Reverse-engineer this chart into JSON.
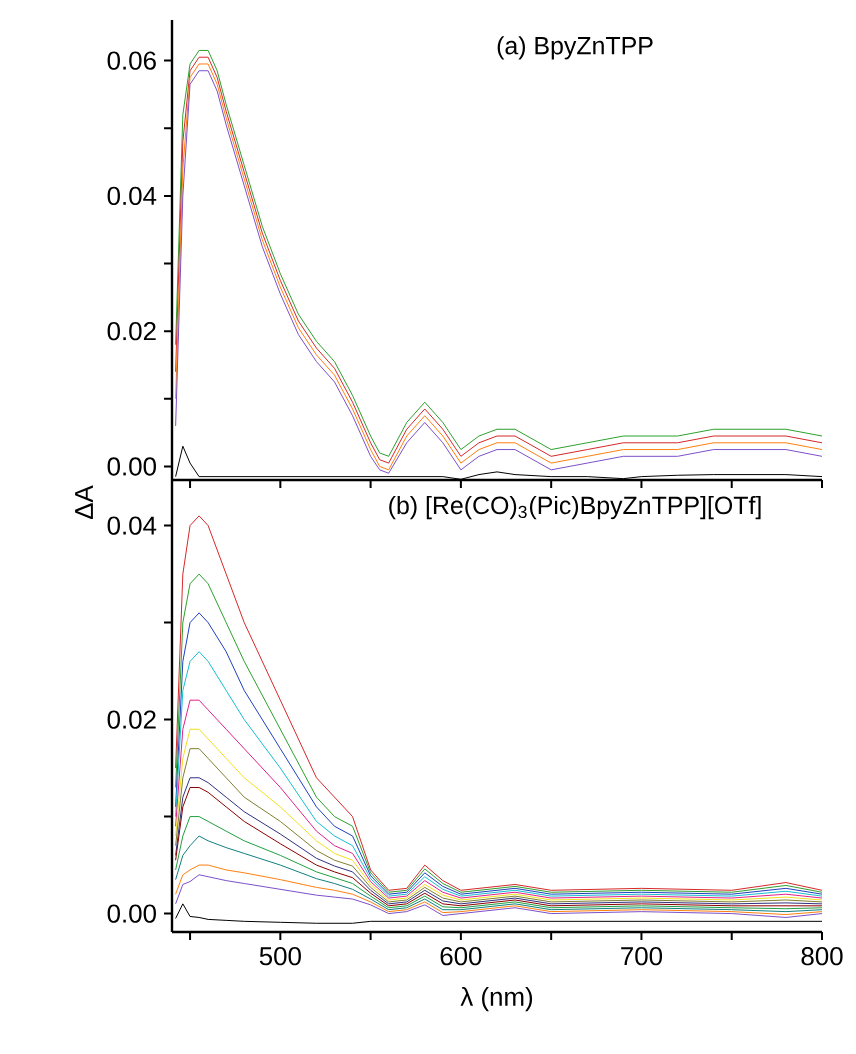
{
  "chart_data": [
    {
      "type": "line",
      "title": "(a) BpyZnTPP",
      "tick_labels": "y",
      "xlim": [
        440,
        800
      ],
      "ylim": [
        -0.002,
        0.066
      ],
      "xticks": [
        {
          "value": 450,
          "label": null
        },
        {
          "value": 500,
          "label": null
        },
        {
          "value": 550,
          "label": null
        },
        {
          "value": 600,
          "label": null
        },
        {
          "value": 650,
          "label": null
        },
        {
          "value": 700,
          "label": null
        },
        {
          "value": 750,
          "label": null
        },
        {
          "value": 800,
          "label": null
        }
      ],
      "yticks": [
        {
          "value": 0,
          "label": "0.00"
        },
        {
          "value": 0.01,
          "label": null
        },
        {
          "value": 0.02,
          "label": "0.02"
        },
        {
          "value": 0.03,
          "label": null
        },
        {
          "value": 0.04,
          "label": "0.04"
        },
        {
          "value": 0.05,
          "label": null
        },
        {
          "value": 0.06,
          "label": "0.06"
        }
      ],
      "x": [
        442,
        446,
        450,
        455,
        460,
        465,
        470,
        480,
        490,
        500,
        510,
        520,
        530,
        540,
        550,
        555,
        560,
        570,
        580,
        590,
        600,
        610,
        620,
        630,
        650,
        670,
        690,
        700,
        720,
        740,
        760,
        780,
        800
      ],
      "series": [
        {
          "color": "#2ca02c",
          "values": [
            0.018,
            0.052,
            0.0595,
            0.0615,
            0.0615,
            0.0585,
            0.0535,
            0.0445,
            0.0355,
            0.0285,
            0.0225,
            0.0185,
            0.0155,
            0.0105,
            0.0045,
            0.002,
            0.0015,
            0.0065,
            0.0095,
            0.0065,
            0.0025,
            0.0045,
            0.0055,
            0.0055,
            0.0025,
            0.0035,
            0.0045,
            0.0045,
            0.0045,
            0.0055,
            0.0055,
            0.0055,
            0.0045
          ]
        },
        {
          "color": "#d62728",
          "values": [
            0.014,
            0.048,
            0.0585,
            0.0605,
            0.0605,
            0.0575,
            0.0525,
            0.0435,
            0.0345,
            0.0275,
            0.0215,
            0.0175,
            0.0145,
            0.0095,
            0.0035,
            0.001,
            0.0005,
            0.0055,
            0.0085,
            0.0055,
            0.0015,
            0.0035,
            0.0045,
            0.0045,
            0.0015,
            0.0025,
            0.0035,
            0.0035,
            0.0035,
            0.0045,
            0.0045,
            0.0045,
            0.0035
          ]
        },
        {
          "color": "#ff7f0e",
          "values": [
            0.01,
            0.044,
            0.0575,
            0.0595,
            0.0595,
            0.0565,
            0.0515,
            0.0425,
            0.0335,
            0.0265,
            0.0205,
            0.0165,
            0.0135,
            0.0085,
            0.0025,
            0,
            -0.0005,
            0.0045,
            0.0075,
            0.0045,
            0.0005,
            0.0025,
            0.0035,
            0.0035,
            0.0005,
            0.0015,
            0.0025,
            0.0025,
            0.0025,
            0.0035,
            0.0035,
            0.0035,
            0.0025
          ]
        },
        {
          "color": "#7b4fc9",
          "values": [
            0.006,
            0.04,
            0.0565,
            0.0585,
            0.0585,
            0.0555,
            0.0505,
            0.0415,
            0.0325,
            0.0255,
            0.0195,
            0.0155,
            0.0125,
            0.0075,
            0.0015,
            -0.0005,
            -0.001,
            0.0035,
            0.0065,
            0.0035,
            -0.0005,
            0.0015,
            0.0025,
            0.0025,
            -0.0005,
            0.0005,
            0.0015,
            0.0015,
            0.0015,
            0.0025,
            0.0025,
            0.0025,
            0.0015
          ]
        },
        {
          "color": "#000000",
          "values": [
            -0.0015,
            0.003,
            0.0005,
            -0.0015,
            -0.0015,
            -0.0015,
            -0.0015,
            -0.0015,
            -0.0015,
            -0.0015,
            -0.0015,
            -0.0015,
            -0.0015,
            -0.0015,
            -0.0015,
            -0.0015,
            -0.0015,
            -0.0015,
            -0.0015,
            -0.0015,
            -0.0019,
            -0.0012,
            -0.0008,
            -0.0012,
            -0.0015,
            -0.0015,
            -0.0018,
            -0.0015,
            -0.0013,
            -0.0012,
            -0.0012,
            -0.0012,
            -0.0015
          ]
        }
      ]
    },
    {
      "type": "line",
      "title": "(b) [Re(CO)$_{3}$(Pic)BpyZnTPP][OTf]",
      "xlabel": "λ (nm)",
      "ylabel": "ΔA",
      "xlim": [
        440,
        800
      ],
      "ylim": [
        -0.0019,
        0.0447
      ],
      "xticks": [
        {
          "value": 450,
          "label": null
        },
        500,
        {
          "value": 550,
          "label": null
        },
        600,
        {
          "value": 650,
          "label": null
        },
        700,
        {
          "value": 750,
          "label": null
        },
        800
      ],
      "yticks": [
        {
          "value": 0,
          "label": "0.00"
        },
        {
          "value": 0.01,
          "label": null
        },
        {
          "value": 0.02,
          "label": "0.02"
        },
        {
          "value": 0.03,
          "label": null
        },
        {
          "value": 0.04,
          "label": "0.04"
        }
      ],
      "x": [
        442,
        446,
        450,
        455,
        460,
        470,
        480,
        500,
        520,
        530,
        540,
        550,
        560,
        570,
        580,
        590,
        600,
        630,
        650,
        700,
        750,
        780,
        800
      ],
      "series": [
        {
          "color": "#d62728",
          "values": [
            0.015,
            0.035,
            0.04,
            0.041,
            0.04,
            0.035,
            0.03,
            0.022,
            0.014,
            0.012,
            0.01,
            0.0045,
            0.0024,
            0.0026,
            0.005,
            0.0034,
            0.0024,
            0.003,
            0.0024,
            0.0026,
            0.0024,
            0.0032,
            0.0024
          ]
        },
        {
          "color": "#2ca02c",
          "values": [
            0.013,
            0.03,
            0.034,
            0.035,
            0.034,
            0.03,
            0.026,
            0.019,
            0.012,
            0.01,
            0.009,
            0.0042,
            0.0022,
            0.0024,
            0.0046,
            0.0031,
            0.0022,
            0.0028,
            0.0022,
            0.0024,
            0.0022,
            0.0029,
            0.0022
          ]
        },
        {
          "color": "#1f3fbf",
          "values": [
            0.011,
            0.026,
            0.03,
            0.031,
            0.03,
            0.027,
            0.023,
            0.017,
            0.011,
            0.009,
            0.008,
            0.0039,
            0.002,
            0.0022,
            0.0042,
            0.0028,
            0.002,
            0.0026,
            0.002,
            0.0022,
            0.002,
            0.0026,
            0.002
          ]
        },
        {
          "color": "#17becf",
          "values": [
            0.01,
            0.023,
            0.026,
            0.027,
            0.026,
            0.023,
            0.02,
            0.015,
            0.0095,
            0.008,
            0.007,
            0.0036,
            0.0018,
            0.002,
            0.0038,
            0.0025,
            0.0018,
            0.0024,
            0.0018,
            0.002,
            0.0018,
            0.0023,
            0.0018
          ]
        },
        {
          "color": "#e0218a",
          "values": [
            0.009,
            0.019,
            0.022,
            0.022,
            0.021,
            0.019,
            0.017,
            0.013,
            0.0085,
            0.007,
            0.0062,
            0.0033,
            0.0016,
            0.0018,
            0.0034,
            0.0022,
            0.0016,
            0.0022,
            0.0016,
            0.0018,
            0.0016,
            0.002,
            0.0016
          ]
        },
        {
          "color": "#f0e020",
          "values": [
            0.008,
            0.016,
            0.019,
            0.019,
            0.018,
            0.016,
            0.014,
            0.011,
            0.0075,
            0.0062,
            0.0055,
            0.003,
            0.0014,
            0.0016,
            0.003,
            0.0019,
            0.0014,
            0.002,
            0.0014,
            0.0016,
            0.0014,
            0.0017,
            0.0014
          ]
        },
        {
          "color": "#808030",
          "values": [
            0.007,
            0.014,
            0.017,
            0.017,
            0.016,
            0.014,
            0.012,
            0.0095,
            0.0065,
            0.0055,
            0.0049,
            0.0027,
            0.0012,
            0.0014,
            0.0027,
            0.0016,
            0.0012,
            0.0018,
            0.0012,
            0.0014,
            0.0012,
            0.0014,
            0.0012
          ]
        },
        {
          "color": "#30307f",
          "values": [
            0.006,
            0.012,
            0.014,
            0.014,
            0.0135,
            0.012,
            0.0105,
            0.0082,
            0.0057,
            0.0049,
            0.0043,
            0.0024,
            0.001,
            0.0012,
            0.0024,
            0.0013,
            0.001,
            0.0016,
            0.001,
            0.0012,
            0.001,
            0.0011,
            0.001
          ]
        },
        {
          "color": "#8b0000",
          "values": [
            0.0055,
            0.011,
            0.013,
            0.013,
            0.0125,
            0.011,
            0.0095,
            0.0072,
            0.005,
            0.0043,
            0.0037,
            0.0021,
            0.0008,
            0.001,
            0.0021,
            0.001,
            0.0008,
            0.0014,
            0.0008,
            0.001,
            0.0008,
            0.0008,
            0.0008
          ]
        },
        {
          "color": "#20a040",
          "values": [
            0.0045,
            0.008,
            0.01,
            0.01,
            0.0095,
            0.0085,
            0.0075,
            0.006,
            0.0043,
            0.0037,
            0.0031,
            0.0018,
            0.0006,
            0.0008,
            0.0018,
            0.0007,
            0.0006,
            0.0012,
            0.0006,
            0.0008,
            0.0006,
            0.0005,
            0.0006
          ]
        },
        {
          "color": "#108080",
          "values": [
            0.0035,
            0.006,
            0.007,
            0.008,
            0.0075,
            0.0068,
            0.0062,
            0.005,
            0.0036,
            0.0031,
            0.0025,
            0.0015,
            0.0004,
            0.0006,
            0.0015,
            0.0004,
            0.0004,
            0.001,
            0.0004,
            0.0006,
            0.0004,
            0.0002,
            0.0004
          ]
        },
        {
          "color": "#ff7f0e",
          "values": [
            0.002,
            0.004,
            0.0045,
            0.005,
            0.005,
            0.0045,
            0.0042,
            0.0035,
            0.0027,
            0.0024,
            0.002,
            0.0012,
            0.0002,
            0.0004,
            0.0012,
            0.0001,
            0.0002,
            0.0008,
            0.0002,
            0.0004,
            0.0002,
            -0.0001,
            0.0002
          ]
        },
        {
          "color": "#7b4fc9",
          "values": [
            0.001,
            0.003,
            0.0033,
            0.004,
            0.0038,
            0.0034,
            0.0031,
            0.0025,
            0.0019,
            0.0017,
            0.0015,
            0.0009,
            0,
            0.0002,
            0.0009,
            -0.0002,
            0,
            0.0006,
            0,
            0.0002,
            0,
            -0.0004,
            0
          ]
        },
        {
          "color": "#000000",
          "values": [
            -0.0005,
            0.001,
            -0.0003,
            -0.0004,
            -0.0006,
            -0.0007,
            -0.0008,
            -0.0009,
            -0.001,
            -0.001,
            -0.001,
            -0.0008,
            -0.0008,
            -0.0008,
            -0.0008,
            -0.0008,
            -0.0008,
            -0.0008,
            -0.0008,
            -0.0008,
            -0.0008,
            -0.0008,
            -0.0008
          ]
        }
      ]
    }
  ]
}
